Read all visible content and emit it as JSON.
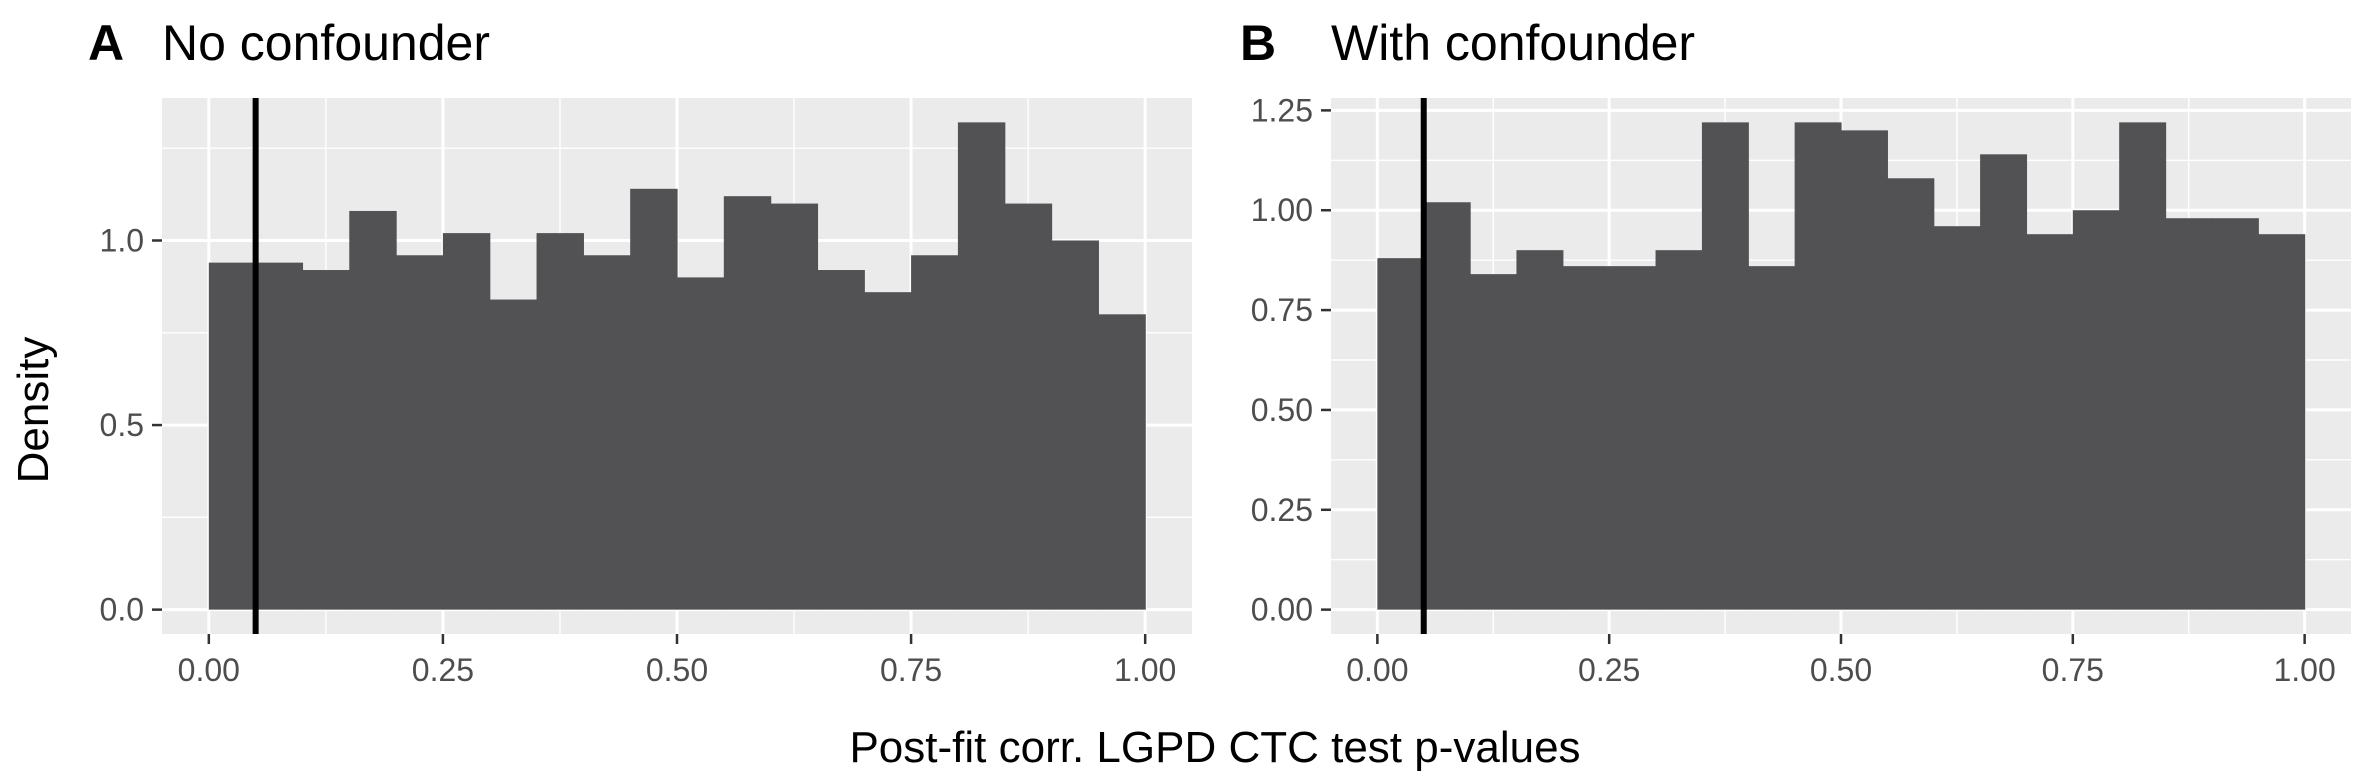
{
  "figure": {
    "xlabel": "Post-fit corr. LGPD CTC test p-values",
    "ylabel": "Density"
  },
  "chart_data": [
    {
      "type": "bar",
      "panel_tag": "A",
      "title": "No confounder",
      "bin_width": 0.05,
      "bin_starts": [
        0.0,
        0.05,
        0.1,
        0.15,
        0.2,
        0.25,
        0.3,
        0.35,
        0.4,
        0.45,
        0.5,
        0.55,
        0.6,
        0.65,
        0.7,
        0.75,
        0.8,
        0.85,
        0.9,
        0.95
      ],
      "values": [
        0.94,
        0.94,
        0.92,
        1.08,
        0.96,
        1.02,
        0.84,
        1.02,
        0.96,
        1.14,
        0.9,
        1.12,
        1.1,
        0.92,
        0.86,
        0.96,
        1.32,
        1.1,
        1.0,
        0.8
      ],
      "xlim": [
        -0.05,
        1.05
      ],
      "ylim": [
        -0.066,
        1.386
      ],
      "xticks": [
        0.0,
        0.25,
        0.5,
        0.75,
        1.0
      ],
      "xtick_labels": [
        "0.00",
        "0.25",
        "0.50",
        "0.75",
        "1.00"
      ],
      "yticks": [
        0.0,
        0.5,
        1.0
      ],
      "ytick_labels": [
        "0.0",
        "0.5",
        "1.0"
      ],
      "vline_x": 0.05,
      "grid": true
    },
    {
      "type": "bar",
      "panel_tag": "B",
      "title": "With confounder",
      "bin_width": 0.05,
      "bin_starts": [
        0.0,
        0.05,
        0.1,
        0.15,
        0.2,
        0.25,
        0.3,
        0.35,
        0.4,
        0.45,
        0.5,
        0.55,
        0.6,
        0.65,
        0.7,
        0.75,
        0.8,
        0.85,
        0.9,
        0.95
      ],
      "values": [
        0.88,
        1.02,
        0.84,
        0.9,
        0.86,
        0.86,
        0.9,
        1.22,
        0.86,
        1.22,
        1.2,
        1.08,
        0.96,
        1.14,
        0.94,
        1.0,
        1.22,
        0.98,
        0.98,
        0.94
      ],
      "xlim": [
        -0.05,
        1.05
      ],
      "ylim": [
        -0.061,
        1.281
      ],
      "xticks": [
        0.0,
        0.25,
        0.5,
        0.75,
        1.0
      ],
      "xtick_labels": [
        "0.00",
        "0.25",
        "0.50",
        "0.75",
        "1.00"
      ],
      "yticks": [
        0.0,
        0.25,
        0.5,
        0.75,
        1.0,
        1.25
      ],
      "ytick_labels": [
        "0.00",
        "0.25",
        "0.50",
        "0.75",
        "1.00",
        "1.25"
      ],
      "vline_x": 0.05,
      "grid": true
    }
  ]
}
